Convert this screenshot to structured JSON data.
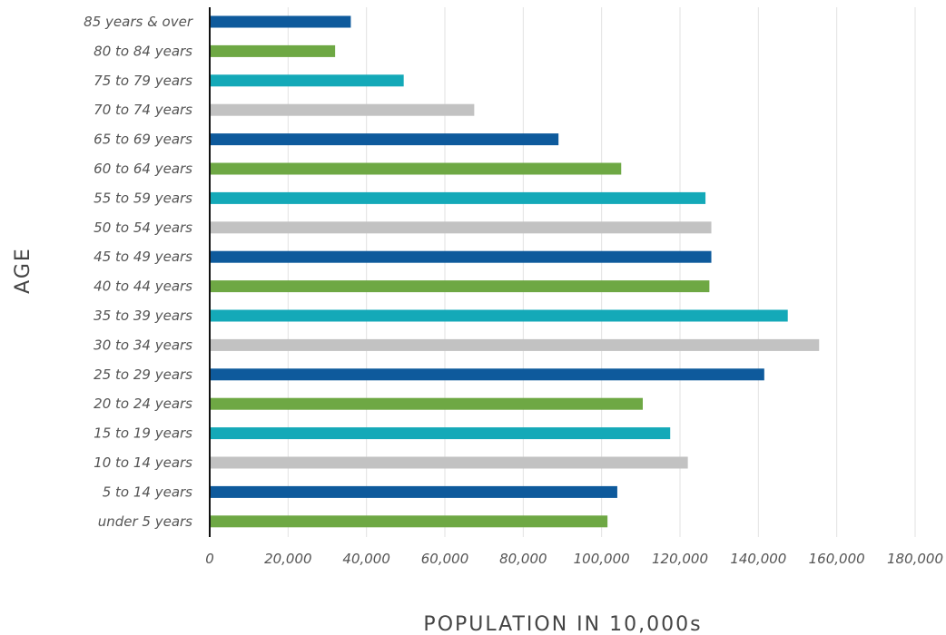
{
  "chart_data": {
    "type": "bar",
    "orientation": "horizontal",
    "title": "",
    "xlabel": "POPULATION IN 10,000s",
    "ylabel": "AGE",
    "xlim": [
      0,
      180000
    ],
    "xticks": [
      0,
      20000,
      40000,
      60000,
      80000,
      100000,
      120000,
      140000,
      160000,
      180000
    ],
    "xtick_labels": [
      "0",
      "20,000",
      "40,000",
      "60,000",
      "80,000",
      "100,000",
      "120,000",
      "140,000",
      "160,000",
      "180,000"
    ],
    "grid": "vertical",
    "legend": "none",
    "categories": [
      "85 years & over",
      "80 to 84 years",
      "75 to 79 years",
      "70 to 74 years",
      "65 to 69 years",
      "60 to 64 years",
      "55 to 59 years",
      "50 to 54 years",
      "45 to 49 years",
      "40 to 44 years",
      "35 to 39 years",
      "30 to 34 years",
      "25 to 29 years",
      "20 to 24 years",
      "15 to 19 years",
      "10 to 14 years",
      "5 to 14 years",
      "under 5 years"
    ],
    "values": [
      36000,
      32000,
      49500,
      67500,
      89000,
      105000,
      126500,
      128000,
      128000,
      127500,
      147500,
      155500,
      141500,
      110500,
      117500,
      122000,
      104000,
      101500
    ],
    "colors": [
      "#0e5a9c",
      "#6ea844",
      "#14a9b8",
      "#c2c2c2",
      "#0e5a9c",
      "#6ea844",
      "#14a9b8",
      "#c2c2c2",
      "#0e5a9c",
      "#6ea844",
      "#14a9b8",
      "#c2c2c2",
      "#0e5a9c",
      "#6ea844",
      "#14a9b8",
      "#c2c2c2",
      "#0e5a9c",
      "#6ea844"
    ]
  }
}
